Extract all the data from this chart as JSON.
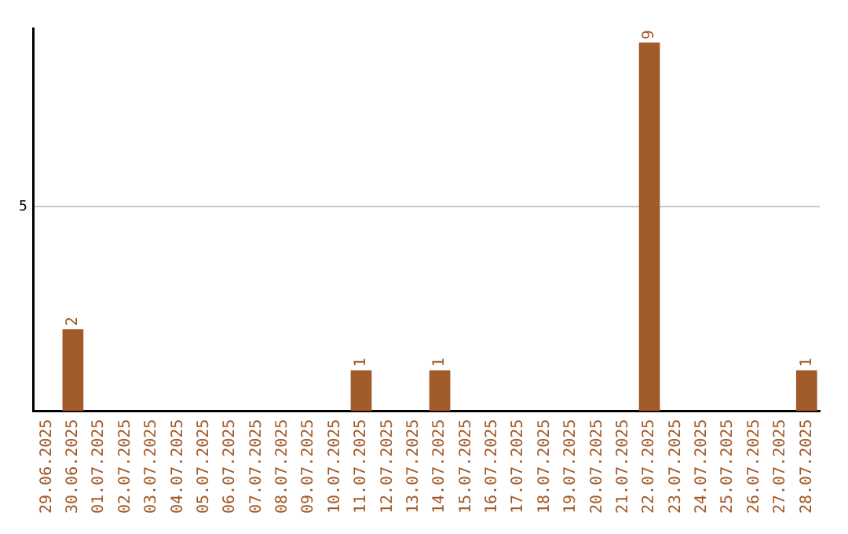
{
  "chart_data": {
    "type": "bar",
    "categories": [
      "29.06.2025",
      "30.06.2025",
      "01.07.2025",
      "02.07.2025",
      "03.07.2025",
      "04.07.2025",
      "05.07.2025",
      "06.07.2025",
      "07.07.2025",
      "08.07.2025",
      "09.07.2025",
      "10.07.2025",
      "11.07.2025",
      "12.07.2025",
      "13.07.2025",
      "14.07.2025",
      "15.07.2025",
      "16.07.2025",
      "17.07.2025",
      "18.07.2025",
      "19.07.2025",
      "20.07.2025",
      "21.07.2025",
      "22.07.2025",
      "23.07.2025",
      "24.07.2025",
      "25.07.2025",
      "26.07.2025",
      "27.07.2025",
      "28.07.2025"
    ],
    "values": [
      0,
      2,
      0,
      0,
      0,
      0,
      0,
      0,
      0,
      0,
      0,
      0,
      1,
      0,
      0,
      1,
      0,
      0,
      0,
      0,
      0,
      0,
      0,
      9,
      0,
      0,
      0,
      0,
      0,
      1
    ],
    "color": "#a15a29",
    "value_labels": [
      null,
      "2",
      null,
      null,
      null,
      null,
      null,
      null,
      null,
      null,
      null,
      null,
      "1",
      null,
      null,
      "1",
      null,
      null,
      null,
      null,
      null,
      null,
      null,
      "9",
      null,
      null,
      null,
      null,
      null,
      "1"
    ],
    "ylim": [
      0,
      9.35
    ],
    "yticks": [
      5
    ],
    "grid": "y",
    "legend": false
  }
}
